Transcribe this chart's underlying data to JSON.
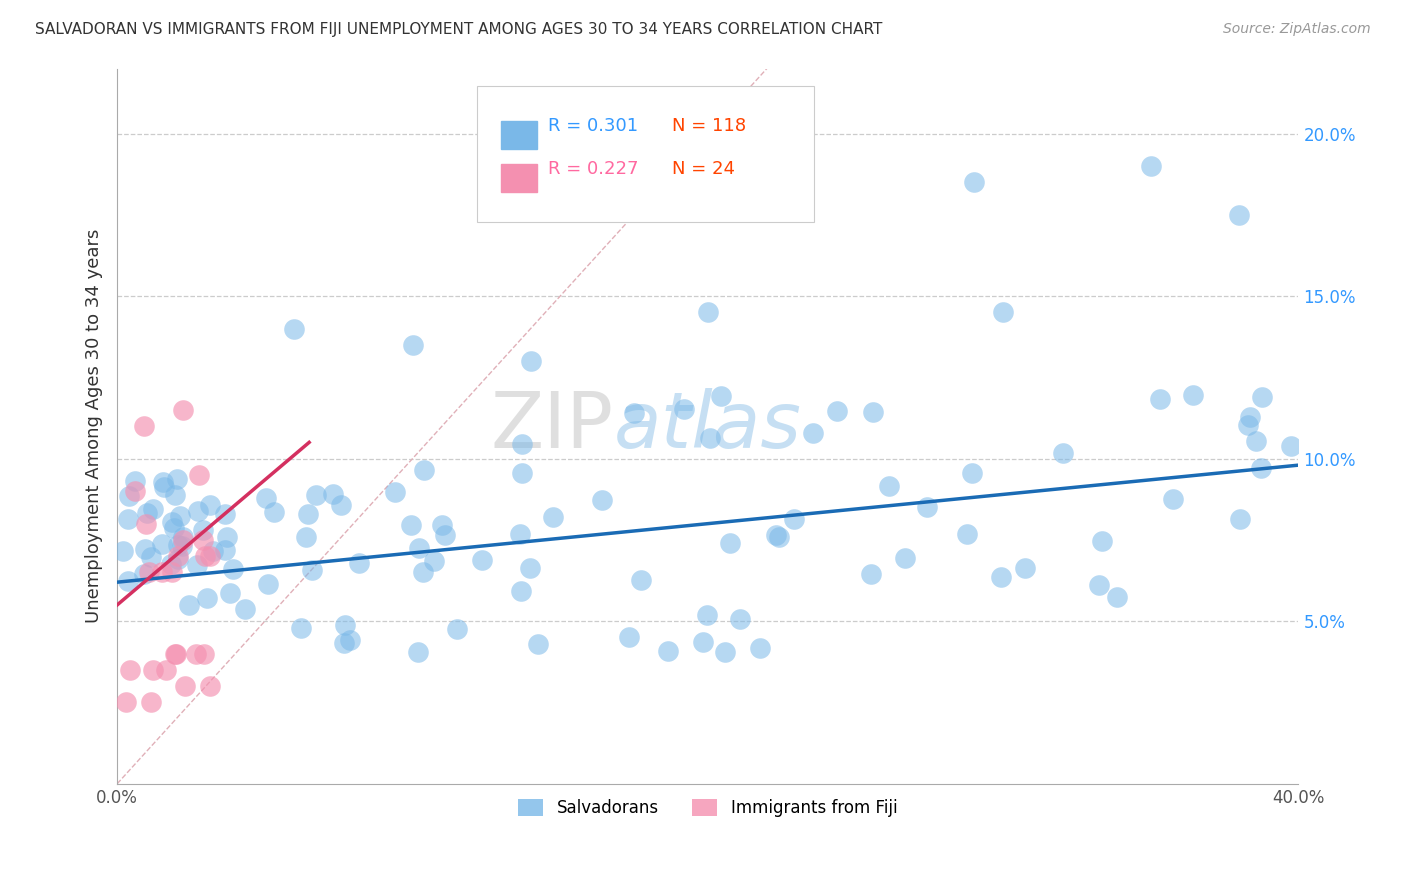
{
  "title": "SALVADORAN VS IMMIGRANTS FROM FIJI UNEMPLOYMENT AMONG AGES 30 TO 34 YEARS CORRELATION CHART",
  "source": "Source: ZipAtlas.com",
  "ylabel": "Unemployment Among Ages 30 to 34 years",
  "xlim": [
    0.0,
    0.4
  ],
  "ylim": [
    0.0,
    0.22
  ],
  "xtick_positions": [
    0.0,
    0.05,
    0.1,
    0.15,
    0.2,
    0.25,
    0.3,
    0.35,
    0.4
  ],
  "xtick_labels": [
    "0.0%",
    "",
    "",
    "",
    "",
    "",
    "",
    "",
    "40.0%"
  ],
  "ytick_positions": [
    0.0,
    0.05,
    0.1,
    0.15,
    0.2
  ],
  "ytick_labels": [
    "",
    "5.0%",
    "10.0%",
    "15.0%",
    "20.0%"
  ],
  "legend_label_salvadoran": "Salvadorans",
  "legend_label_fiji": "Immigrants from Fiji",
  "salvadoran_color": "#7ab8e8",
  "fiji_color": "#f490b0",
  "trendline_salvadoran_color": "#1a6bb5",
  "trendline_fiji_color": "#d43060",
  "diagonal_color": "#d0d0d0",
  "watermark_text": "ZIPatlas",
  "r_salvadoran": "R = 0.301",
  "n_salvadoran": "N = 118",
  "r_fiji": "R = 0.227",
  "n_fiji": "N = 24",
  "sal_trendline_x0": 0.0,
  "sal_trendline_y0": 0.062,
  "sal_trendline_x1": 0.4,
  "sal_trendline_y1": 0.098,
  "fiji_trendline_x0": 0.0,
  "fiji_trendline_y0": 0.055,
  "fiji_trendline_x1": 0.065,
  "fiji_trendline_y1": 0.105
}
